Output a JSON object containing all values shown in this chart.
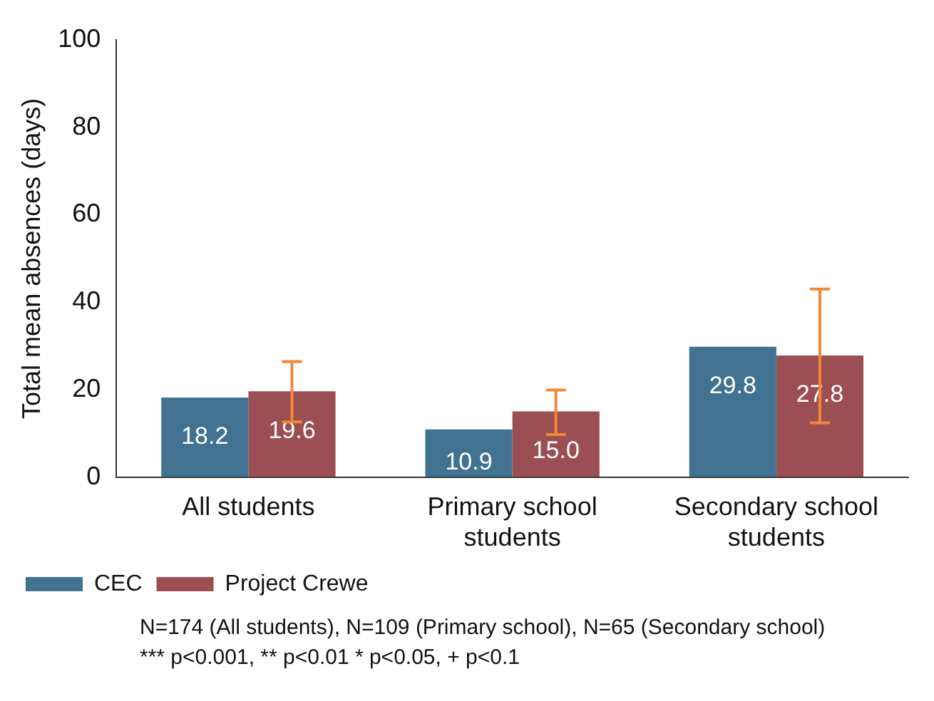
{
  "chart_data": {
    "type": "bar",
    "ylabel": "Total mean absences (days)",
    "categories": [
      "All students",
      "Primary school students",
      "Secondary school students"
    ],
    "series": [
      {
        "name": "CEC",
        "color": "#41728f",
        "values": [
          18.2,
          10.9,
          29.8
        ],
        "value_labels": [
          "18.2",
          "10.9",
          "29.8"
        ]
      },
      {
        "name": "Project Crewe",
        "color": "#9c4f53",
        "values": [
          19.6,
          15.0,
          27.8
        ],
        "value_labels": [
          "19.6",
          "15.0",
          "27.8"
        ],
        "errors": [
          [
            12.6,
            26.4
          ],
          [
            9.7,
            19.9
          ],
          [
            12.4,
            43.0
          ]
        ]
      }
    ],
    "ylim": [
      0,
      100
    ],
    "yticks": [
      0,
      20,
      40,
      60,
      80,
      100
    ],
    "grid": false,
    "legend": "bottom left",
    "annotations": [
      "N=174 (All students), N=109 (Primary school), N=65 (Secondary school)",
      "*** p<0.001, ** p<0.01 * p<0.05, + p<0.1"
    ]
  }
}
